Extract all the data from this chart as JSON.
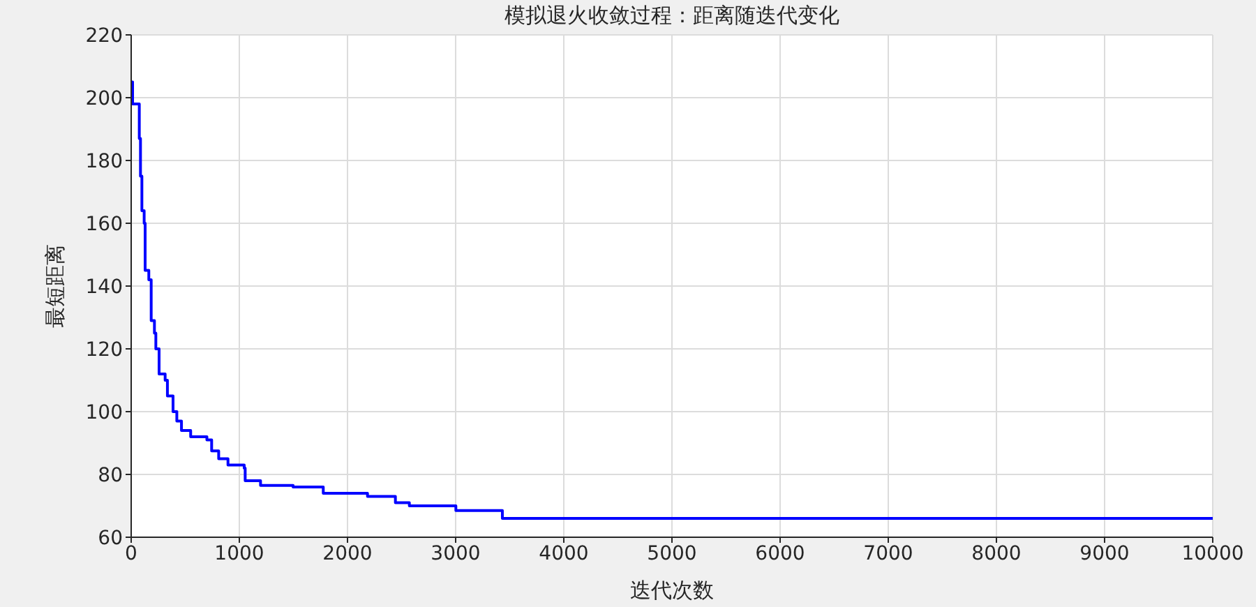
{
  "chart_data": {
    "type": "step",
    "title": "模拟退火收敛过程：距离随迭代变化",
    "xlabel": "迭代次数",
    "ylabel": "最短距离",
    "x": [
      0,
      13,
      65,
      75,
      86,
      99,
      120,
      129,
      163,
      185,
      215,
      228,
      258,
      314,
      335,
      387,
      422,
      465,
      550,
      700,
      744,
      809,
      895,
      1045,
      1054,
      1196,
      1497,
      1776,
      2185,
      2443,
      2572,
      3002,
      3432,
      10000
    ],
    "series": [
      {
        "color": "#0000ff",
        "values": [
          205,
          198,
          198,
          187,
          175,
          164,
          160,
          145,
          142,
          129,
          125,
          120,
          112,
          110,
          105,
          100,
          97,
          94,
          92,
          91,
          87.5,
          85,
          83,
          82,
          78,
          76.5,
          76,
          74,
          73,
          71,
          70,
          68.5,
          66,
          66
        ]
      }
    ],
    "xlim": [
      0,
      10000
    ],
    "xticks": [
      0,
      1000,
      2000,
      3000,
      4000,
      5000,
      6000,
      7000,
      8000,
      9000,
      10000
    ],
    "ylim": [
      60,
      220
    ],
    "yticks": [
      60,
      80,
      100,
      120,
      140,
      160,
      180,
      200,
      220
    ],
    "grid": true,
    "legend": false
  }
}
